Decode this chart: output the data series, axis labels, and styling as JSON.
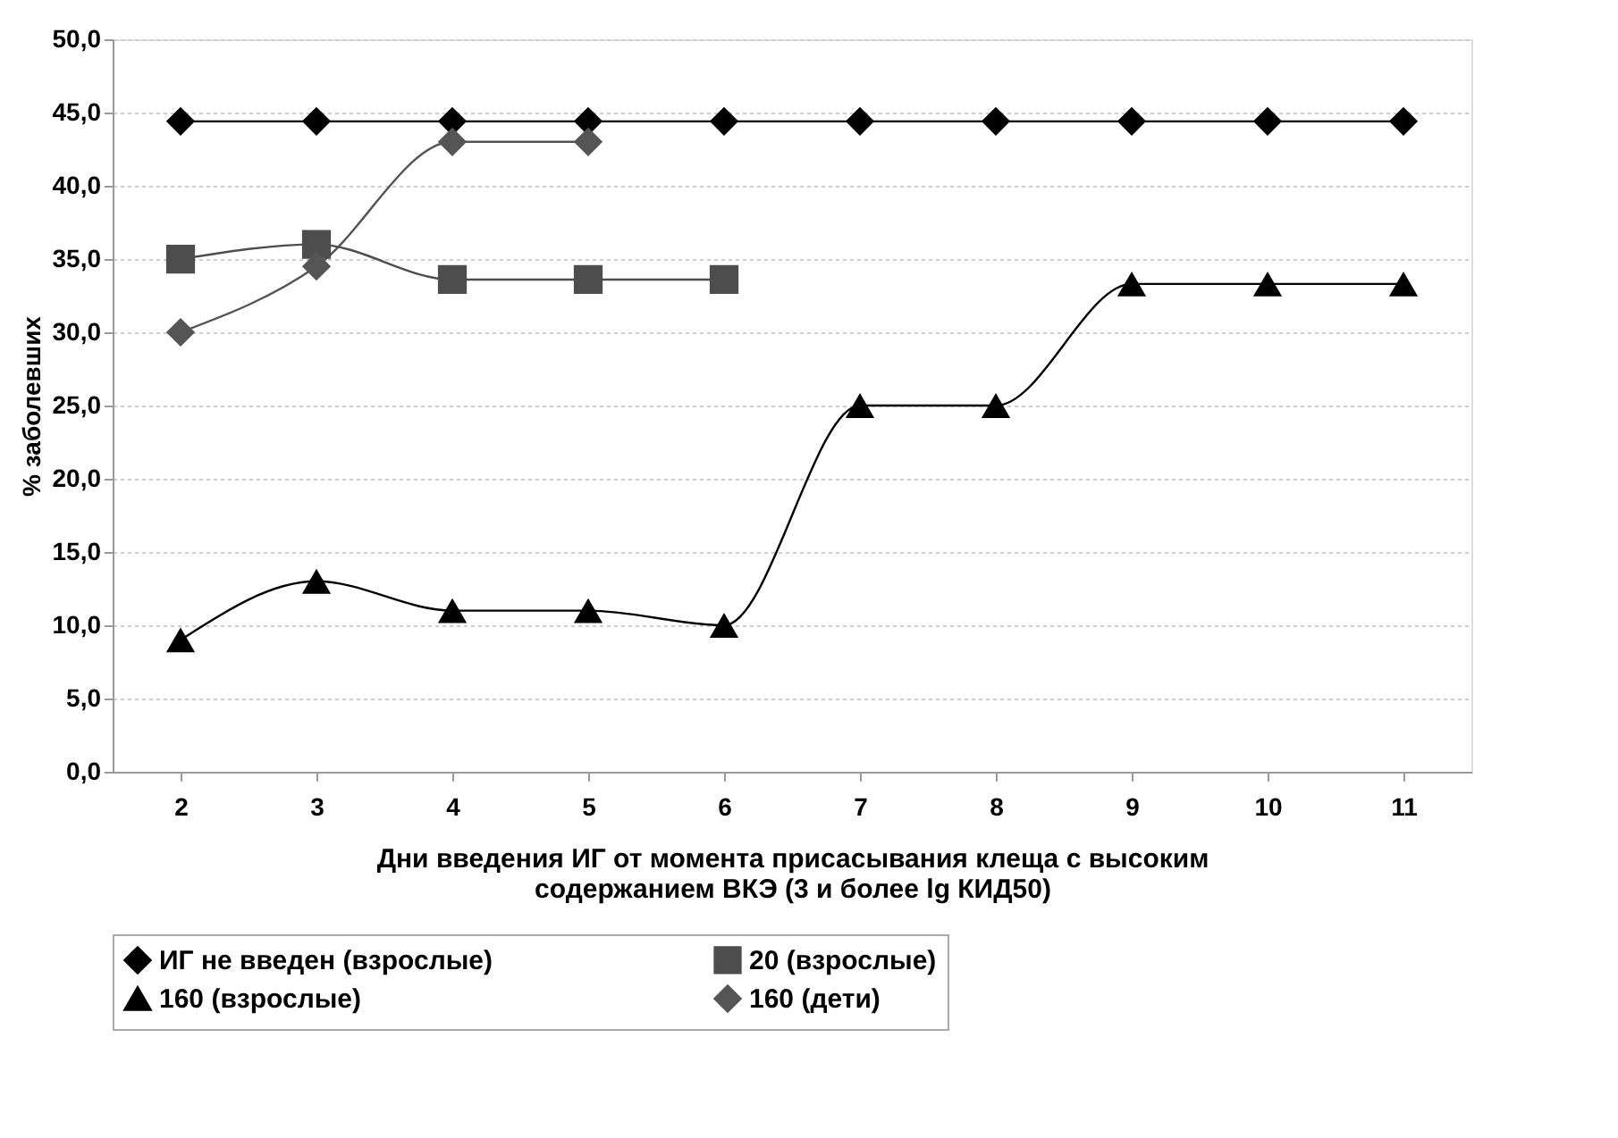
{
  "chart_data": {
    "type": "line",
    "xlabel": "Дни введения ИГ от момента присасывания клеща с высоким\nсодержанием ВКЭ (3 и более lg КИД50)",
    "ylabel": "% заболевших",
    "categories": [
      "2",
      "3",
      "4",
      "5",
      "6",
      "7",
      "8",
      "9",
      "10",
      "11"
    ],
    "series": [
      {
        "name": "ИГ не введен (взрослые)",
        "color": "#000000",
        "marker": "diamond",
        "values": [
          44.4,
          44.4,
          44.4,
          44.4,
          44.4,
          44.4,
          44.4,
          44.4,
          44.4,
          44.4
        ]
      },
      {
        "name": "20 (взрослые)",
        "color": "#4d4d4d",
        "marker": "square",
        "values": [
          35.0,
          36.0,
          33.6,
          33.6,
          33.6,
          null,
          null,
          null,
          null,
          null
        ]
      },
      {
        "name": "160 (взрослые)",
        "color": "#000000",
        "marker": "triangle",
        "values": [
          9.0,
          13.0,
          11.0,
          11.0,
          10.0,
          25.0,
          25.0,
          33.3,
          33.3,
          33.3
        ]
      },
      {
        "name": "160 (дети)",
        "color": "#555555",
        "marker": "diamond",
        "values": [
          30.0,
          34.5,
          43.0,
          43.0,
          null,
          null,
          null,
          null,
          null,
          null
        ]
      }
    ],
    "ylim": [
      0,
      50
    ],
    "yticks": [
      {
        "value": 0,
        "label": "0,0"
      },
      {
        "value": 5,
        "label": "5,0"
      },
      {
        "value": 10,
        "label": "10,0"
      },
      {
        "value": 15,
        "label": "15,0"
      },
      {
        "value": 20,
        "label": "20,0"
      },
      {
        "value": 25,
        "label": "25,0"
      },
      {
        "value": 30,
        "label": "30,0"
      },
      {
        "value": 35,
        "label": "35,0"
      },
      {
        "value": 40,
        "label": "40,0"
      },
      {
        "value": 45,
        "label": "45,0"
      },
      {
        "value": 50,
        "label": "50,0"
      }
    ],
    "grid": "y",
    "legend": "bottom",
    "line_style": "solid"
  }
}
